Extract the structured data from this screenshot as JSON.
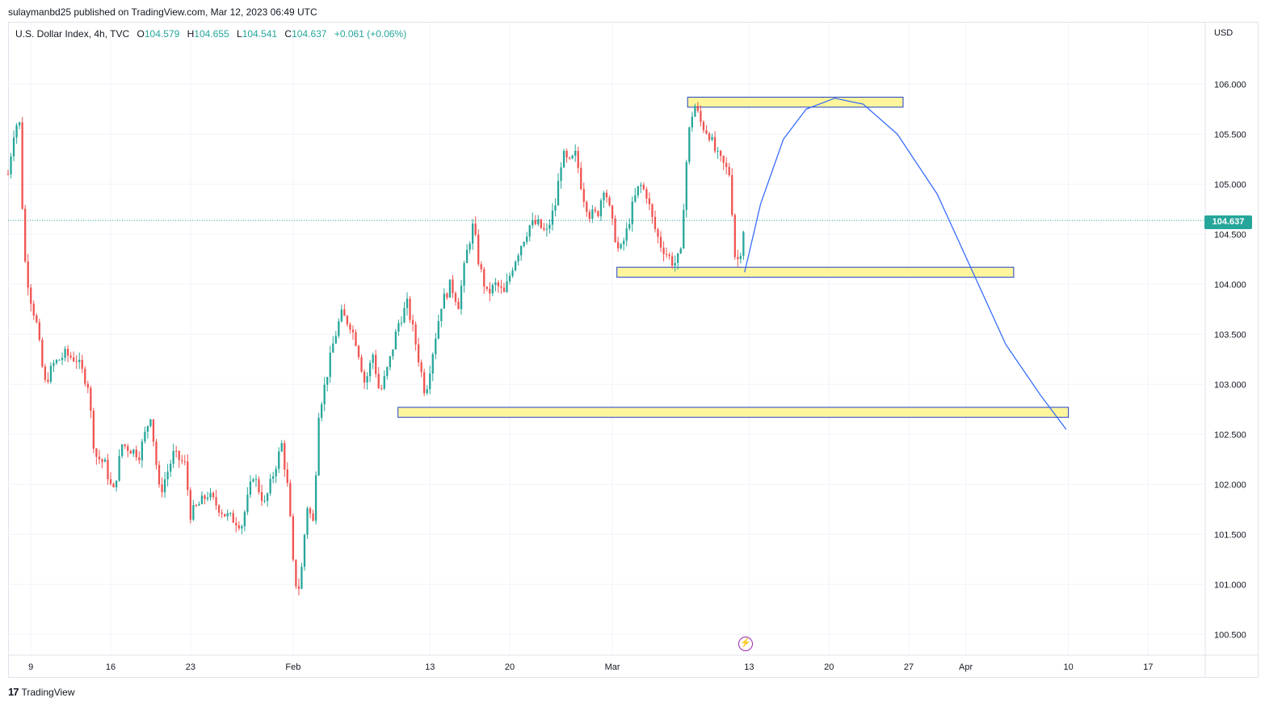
{
  "header": {
    "publish_info": "sulaymanbd25 published on TradingView.com, Mar 12, 2023 06:49 UTC"
  },
  "legend": {
    "symbol": "U.S. Dollar Index, 4h, TVC",
    "open_label": "O",
    "open": "104.579",
    "high_label": "H",
    "high": "104.655",
    "low_label": "L",
    "low": "104.541",
    "close_label": "C",
    "close": "104.637",
    "change": "+0.061 (+0.06%)"
  },
  "price_axis": {
    "currency": "USD",
    "last_price": "104.637"
  },
  "footer": {
    "brand": "TradingView",
    "logo": "17"
  },
  "icons": {
    "event": "lightning-icon"
  },
  "colors": {
    "up": "#26a69a",
    "down": "#ef5350",
    "zone_fill": "#fff59d",
    "zone_border": "#1e40c8",
    "projection": "#2962ff"
  },
  "chart_data": {
    "type": "candlestick",
    "title": "U.S. Dollar Index, 4h, TVC",
    "ylim": [
      100.4,
      106.4
    ],
    "y_ticks": [
      106.0,
      105.5,
      105.0,
      104.5,
      104.0,
      103.5,
      103.0,
      102.5,
      102.0,
      101.5,
      101.0,
      100.5
    ],
    "x_ticks": [
      "9",
      "16",
      "23",
      "Feb",
      "13",
      "20",
      "Mar",
      "13",
      "20",
      "27",
      "Apr",
      "10",
      "17"
    ],
    "x_tick_days": [
      9,
      16,
      23,
      32,
      44,
      51,
      60,
      72,
      79,
      86,
      91,
      100,
      107
    ],
    "x_start": "2023-01-01",
    "last_close": 104.637,
    "price_path": [
      [
        7.0,
        105.1
      ],
      [
        7.6,
        105.6
      ],
      [
        8.0,
        105.6
      ],
      [
        8.4,
        104.3
      ],
      [
        8.9,
        103.9
      ],
      [
        9.5,
        103.6
      ],
      [
        10.2,
        103.0
      ],
      [
        11.0,
        103.2
      ],
      [
        12.0,
        103.3
      ],
      [
        13.0,
        103.25
      ],
      [
        14.0,
        103.0
      ],
      [
        14.6,
        102.3
      ],
      [
        15.5,
        102.2
      ],
      [
        16.2,
        101.9
      ],
      [
        17.0,
        102.4
      ],
      [
        18.5,
        102.3
      ],
      [
        19.5,
        102.7
      ],
      [
        20.3,
        101.9
      ],
      [
        21.5,
        102.3
      ],
      [
        22.5,
        102.2
      ],
      [
        23.0,
        101.7
      ],
      [
        24.5,
        101.9
      ],
      [
        26.0,
        101.7
      ],
      [
        27.5,
        101.6
      ],
      [
        28.5,
        102.1
      ],
      [
        29.5,
        101.8
      ],
      [
        30.5,
        102.2
      ],
      [
        31.0,
        102.4
      ],
      [
        31.6,
        101.9
      ],
      [
        32.0,
        101.2
      ],
      [
        32.4,
        100.9
      ],
      [
        32.8,
        101.2
      ],
      [
        33.2,
        101.8
      ],
      [
        33.8,
        101.6
      ],
      [
        34.2,
        102.7
      ],
      [
        34.8,
        103.0
      ],
      [
        35.5,
        103.4
      ],
      [
        36.2,
        103.7
      ],
      [
        37.0,
        103.6
      ],
      [
        37.6,
        103.4
      ],
      [
        38.3,
        103.0
      ],
      [
        39.0,
        103.3
      ],
      [
        39.6,
        102.9
      ],
      [
        40.4,
        103.2
      ],
      [
        41.2,
        103.6
      ],
      [
        42.0,
        103.8
      ],
      [
        42.6,
        103.5
      ],
      [
        43.1,
        103.2
      ],
      [
        43.6,
        102.9
      ],
      [
        44.2,
        103.3
      ],
      [
        45.0,
        103.8
      ],
      [
        45.8,
        104.0
      ],
      [
        46.5,
        103.8
      ],
      [
        47.2,
        104.3
      ],
      [
        47.8,
        104.6
      ],
      [
        48.3,
        104.2
      ],
      [
        49.0,
        103.9
      ],
      [
        49.8,
        104.0
      ],
      [
        50.5,
        103.9
      ],
      [
        51.3,
        104.2
      ],
      [
        52.0,
        104.4
      ],
      [
        52.8,
        104.6
      ],
      [
        53.5,
        104.6
      ],
      [
        54.2,
        104.5
      ],
      [
        55.0,
        104.8
      ],
      [
        55.6,
        105.3
      ],
      [
        56.2,
        105.2
      ],
      [
        56.8,
        105.3
      ],
      [
        57.4,
        104.9
      ],
      [
        58.0,
        104.7
      ],
      [
        58.7,
        104.7
      ],
      [
        59.3,
        105.0
      ],
      [
        60.0,
        104.6
      ],
      [
        60.6,
        104.3
      ],
      [
        61.2,
        104.5
      ],
      [
        61.8,
        104.8
      ],
      [
        62.4,
        105.0
      ],
      [
        63.0,
        104.9
      ],
      [
        63.6,
        104.6
      ],
      [
        64.2,
        104.4
      ],
      [
        64.8,
        104.3
      ],
      [
        65.4,
        104.2
      ],
      [
        66.0,
        104.3
      ],
      [
        66.4,
        105.1
      ],
      [
        66.8,
        105.6
      ],
      [
        67.2,
        105.8
      ],
      [
        67.8,
        105.6
      ],
      [
        68.5,
        105.5
      ],
      [
        69.1,
        105.3
      ],
      [
        69.7,
        105.2
      ],
      [
        70.3,
        105.1
      ],
      [
        70.8,
        104.2
      ],
      [
        71.2,
        104.3
      ],
      [
        71.6,
        104.637
      ]
    ],
    "zones": [
      {
        "day_start": 66.6,
        "day_end": 85.5,
        "price_top": 105.87,
        "price_bottom": 105.77
      },
      {
        "day_start": 60.4,
        "day_end": 95.2,
        "price_top": 104.17,
        "price_bottom": 104.07
      },
      {
        "day_start": 41.2,
        "day_end": 100.0,
        "price_top": 102.77,
        "price_bottom": 102.67
      }
    ],
    "projection": [
      [
        71.6,
        104.12
      ],
      [
        73.0,
        104.8
      ],
      [
        75.0,
        105.45
      ],
      [
        77.0,
        105.75
      ],
      [
        79.5,
        105.86
      ],
      [
        82.0,
        105.8
      ],
      [
        85.0,
        105.5
      ],
      [
        88.5,
        104.9
      ],
      [
        91.5,
        104.15
      ],
      [
        94.5,
        103.4
      ],
      [
        97.5,
        102.9
      ],
      [
        99.8,
        102.55
      ]
    ]
  }
}
